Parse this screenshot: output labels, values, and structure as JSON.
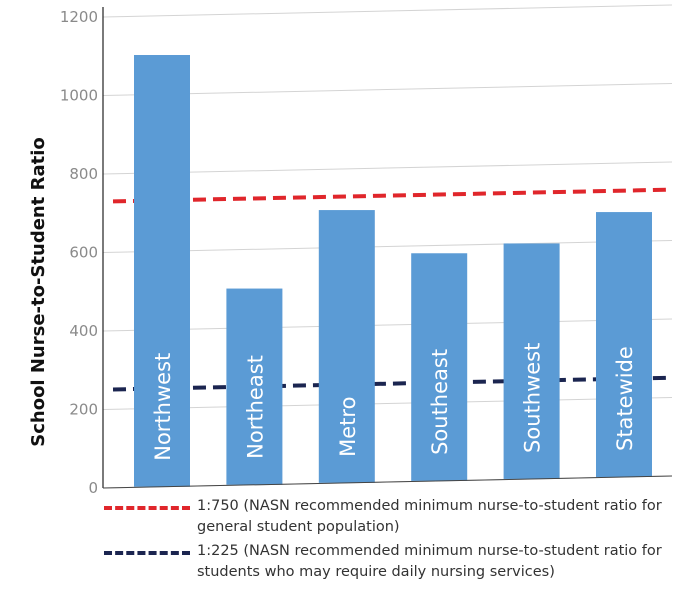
{
  "chart_data": {
    "type": "bar",
    "ylabel": "School Nurse-to-Student Ratio",
    "ylim": [
      0,
      1200
    ],
    "yticks": [
      0,
      200,
      400,
      600,
      800,
      1000,
      1200
    ],
    "categories": [
      "Northwest",
      "Northeast",
      "Metro",
      "Southeast",
      "Southwest",
      "Statewide"
    ],
    "values": [
      1100,
      500,
      695,
      580,
      600,
      675
    ],
    "bar_color": "#5b9bd5",
    "grid": true,
    "reference_lines": [
      {
        "value": 750,
        "color": "#e0262b",
        "text": "1:750 (NASN recommended minimum nurse-to-student ratio for general student population)"
      },
      {
        "value": 225,
        "color": "#1b2550",
        "text": "1:225 (NASN recommended minimum nurse-to-student ratio for students who may require daily nursing services)"
      }
    ]
  }
}
